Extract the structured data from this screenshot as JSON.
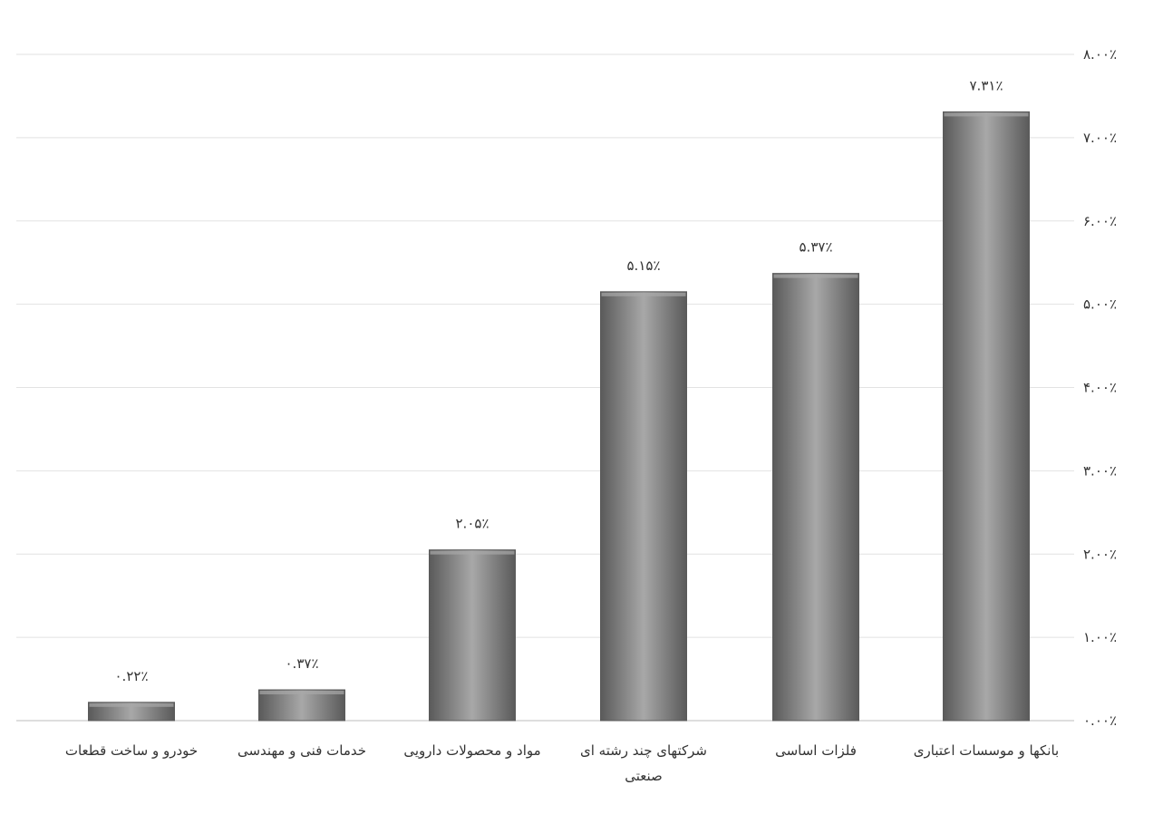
{
  "chart_data": {
    "type": "bar",
    "title": "",
    "xlabel": "",
    "ylabel": "",
    "categories": [
      "بانکها و موسسات اعتباری",
      "فلزات اساسی",
      "شرکتهای چند رشته ای صنعتی",
      "مواد و محصولات دارویی",
      "خدمات فنی و مهندسی",
      "خودرو و ساخت قطعات"
    ],
    "values": [
      7.31,
      5.37,
      5.15,
      2.05,
      0.37,
      0.22
    ],
    "data_labels": [
      "۷.۳۱٪",
      "۵.۳۷٪",
      "۵.۱۵٪",
      "۲.۰۵٪",
      "۰.۳۷٪",
      "۰.۲۲٪"
    ],
    "y_ticks": [
      0,
      1,
      2,
      3,
      4,
      5,
      6,
      7,
      8
    ],
    "y_tick_labels": [
      "۰.۰۰٪",
      "۱.۰۰٪",
      "۲.۰۰٪",
      "۳.۰۰٪",
      "۴.۰۰٪",
      "۵.۰۰٪",
      "۶.۰۰٪",
      "۷.۰۰٪",
      "۸.۰۰٪"
    ],
    "ylim": [
      0,
      8
    ],
    "y_axis_side": "right",
    "category_order": "right-to-left",
    "grid": true,
    "legend": "none",
    "colors": {
      "bar_fill": "#8c8c8c",
      "bar_edge": "#5a5a5a",
      "bar_highlight": "#a8a8a8",
      "gridline": "#e2e2e2",
      "axis": "#bdbdbd",
      "text": "#333333"
    }
  }
}
